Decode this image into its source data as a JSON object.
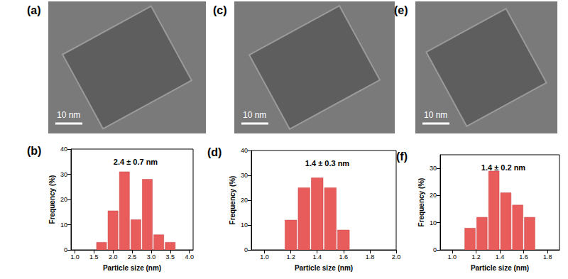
{
  "images": [
    {
      "panel": "(a)",
      "scale_bar": "10 nm"
    },
    {
      "panel": "(c)",
      "scale_bar": "10 nm"
    },
    {
      "panel": "(e)",
      "scale_bar": "10 nm"
    }
  ],
  "chart_data": [
    {
      "type": "histogram",
      "panel": "(b)",
      "title": "2.4 ± 0.7 nm",
      "x_label": "Particle size (nm)",
      "y_label": "Frequency (%)",
      "bins": [
        1.55,
        1.85,
        2.15,
        2.45,
        2.75,
        3.05,
        3.35,
        3.65
      ],
      "counts": [
        3,
        15.5,
        31,
        12,
        28,
        6,
        3
      ],
      "color": "#e85c5c",
      "xlim": [
        0.9,
        4.1
      ],
      "xticks": [
        {
          "value": 1,
          "label": "1.0"
        },
        {
          "value": 1.5,
          "label": "1.5"
        },
        {
          "value": 2,
          "label": "2.0"
        },
        {
          "value": 2.5,
          "label": "2.5"
        },
        {
          "value": 3,
          "label": "3.0"
        },
        {
          "value": 3.5,
          "label": "3.5"
        },
        {
          "value": 4,
          "label": "4.0"
        }
      ],
      "ylim": [
        0,
        40
      ],
      "yticks": [
        0,
        10,
        20,
        30,
        40
      ],
      "grid": false
    },
    {
      "type": "histogram",
      "panel": "(d)",
      "title": "1.4 ± 0.3 nm",
      "x_label": "Particle size (nm)",
      "y_label": "Frequency (%)",
      "bins": [
        1.15,
        1.25,
        1.35,
        1.45,
        1.55,
        1.65
      ],
      "counts": [
        12,
        25,
        29,
        25,
        8
      ],
      "color": "#e85c5c",
      "xlim": [
        0.9,
        2.0
      ],
      "xticks": [
        {
          "value": 1,
          "label": "1.0"
        },
        {
          "value": 1.2,
          "label": "1.2"
        },
        {
          "value": 1.4,
          "label": "1.4"
        },
        {
          "value": 1.6,
          "label": "1.6"
        },
        {
          "value": 1.8,
          "label": "1.8"
        },
        {
          "value": 2,
          "label": "2.0"
        }
      ],
      "ylim": [
        0,
        40
      ],
      "yticks": [
        0,
        10,
        20,
        30,
        40
      ],
      "grid": false
    },
    {
      "type": "histogram",
      "panel": "(f)",
      "title": "1.4 ± 0.2 nm",
      "x_label": "Particle size (nm)",
      "y_label": "Frequency (%)",
      "bins": [
        1.1,
        1.2,
        1.3,
        1.4,
        1.5,
        1.6,
        1.7
      ],
      "counts": [
        8,
        12,
        29,
        21,
        16.5,
        12
      ],
      "color": "#e85c5c",
      "xlim": [
        0.9,
        1.9
      ],
      "xticks": [
        {
          "value": 1,
          "label": "1.0"
        },
        {
          "value": 1.2,
          "label": "1.2"
        },
        {
          "value": 1.4,
          "label": "1.4"
        },
        {
          "value": 1.6,
          "label": "1.6"
        },
        {
          "value": 1.8,
          "label": "1.8"
        }
      ],
      "ylim": [
        0,
        35
      ],
      "yticks": [
        0,
        10,
        20,
        30
      ],
      "grid": false
    }
  ]
}
